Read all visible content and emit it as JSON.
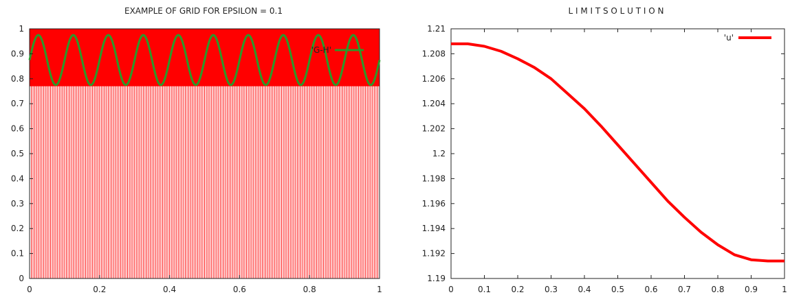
{
  "chart_data": [
    {
      "type": "line",
      "title": "EXAMPLE OF GRID FOR EPSILON = 0.1",
      "xlabel": "",
      "ylabel": "",
      "xlim": [
        0,
        1
      ],
      "ylim": [
        0,
        1
      ],
      "x_ticks": [
        "0",
        "0.2",
        "0.4",
        "0.6",
        "0.8",
        "1"
      ],
      "y_ticks": [
        "0",
        "0.1",
        "0.2",
        "0.3",
        "0.4",
        "0.5",
        "0.6",
        "0.7",
        "0.8",
        "0.9",
        "1"
      ],
      "grid": "dense vertical red grid lines over full plot; filled red band from y=0.77 to y=1",
      "series": [
        {
          "name": "'G-H'",
          "color": "#2a9a2a",
          "function": "0.875 + 0.1*sin(2*pi*10*x)",
          "x_range": [
            0,
            1
          ],
          "y_min": 0.775,
          "y_max": 0.975,
          "periods": 10
        }
      ],
      "band": {
        "y_from": 0.77,
        "y_to": 1.0,
        "color": "#ff0000"
      },
      "grid_lines_count": 200,
      "legend_position": "top-right"
    },
    {
      "type": "line",
      "title": "L I M I T   S O L U T I O N",
      "xlabel": "",
      "ylabel": "",
      "xlim": [
        0,
        1
      ],
      "ylim": [
        1.19,
        1.21
      ],
      "x_ticks": [
        "0",
        "0.1",
        "0.2",
        "0.3",
        "0.4",
        "0.5",
        "0.6",
        "0.7",
        "0.8",
        "0.9",
        "1"
      ],
      "y_ticks": [
        "1.19",
        "1.192",
        "1.194",
        "1.196",
        "1.198",
        "1.2",
        "1.202",
        "1.204",
        "1.206",
        "1.208",
        "1.21"
      ],
      "series": [
        {
          "name": "'u'",
          "color": "#ff0000",
          "x": [
            0,
            0.05,
            0.1,
            0.15,
            0.2,
            0.25,
            0.3,
            0.35,
            0.4,
            0.45,
            0.5,
            0.55,
            0.6,
            0.65,
            0.7,
            0.75,
            0.8,
            0.85,
            0.9,
            0.95,
            1
          ],
          "y": [
            1.2088,
            1.2088,
            1.2086,
            1.2082,
            1.2076,
            1.2069,
            1.206,
            1.2048,
            1.2036,
            1.2022,
            1.2007,
            1.1992,
            1.1977,
            1.1962,
            1.1949,
            1.1937,
            1.1927,
            1.1919,
            1.1915,
            1.1914,
            1.1914
          ]
        }
      ],
      "grid": false,
      "legend_position": "top-right"
    }
  ]
}
